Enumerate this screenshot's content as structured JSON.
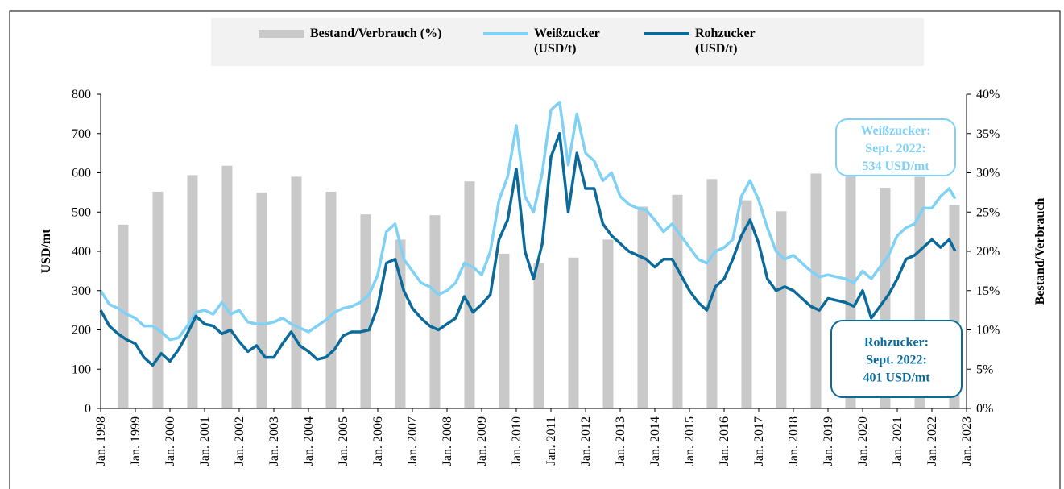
{
  "chart_data": {
    "type": "bar_line",
    "ylabel": "USD/mt",
    "y2label": "Bestand/Verbrauch",
    "xlim": [
      1998,
      2023
    ],
    "xticks": [
      {
        "value": 1998,
        "label": "Jan. 1998"
      },
      {
        "value": 1999,
        "label": "Jan. 1999"
      },
      {
        "value": 2000,
        "label": "Jan. 2000"
      },
      {
        "value": 2001,
        "label": "Jan. 2001"
      },
      {
        "value": 2002,
        "label": "Jan. 2002"
      },
      {
        "value": 2003,
        "label": "Jan. 2003"
      },
      {
        "value": 2004,
        "label": "Jan. 2004"
      },
      {
        "value": 2005,
        "label": "Jan. 2005"
      },
      {
        "value": 2006,
        "label": "Jan. 2006"
      },
      {
        "value": 2007,
        "label": "Jan. 2007"
      },
      {
        "value": 2008,
        "label": "Jan. 2008"
      },
      {
        "value": 2009,
        "label": "Jan. 2009"
      },
      {
        "value": 2010,
        "label": "Jan. 2010"
      },
      {
        "value": 2011,
        "label": "Jan. 2011"
      },
      {
        "value": 2012,
        "label": "Jan. 2012"
      },
      {
        "value": 2013,
        "label": "Jan. 2013"
      },
      {
        "value": 2014,
        "label": "Jan. 2014"
      },
      {
        "value": 2015,
        "label": "Jan. 2015"
      },
      {
        "value": 2016,
        "label": "Jan. 2016"
      },
      {
        "value": 2017,
        "label": "Jan. 2017"
      },
      {
        "value": 2018,
        "label": "Jan. 2018"
      },
      {
        "value": 2019,
        "label": "Jan. 2019"
      },
      {
        "value": 2020,
        "label": "Jan. 2020"
      },
      {
        "value": 2021,
        "label": "Jan. 2021"
      },
      {
        "value": 2022,
        "label": "Jan. 2022"
      },
      {
        "value": 2023,
        "label": "Jan. 2023"
      }
    ],
    "ylim": [
      0,
      800
    ],
    "yticks": [
      0,
      100,
      200,
      300,
      400,
      500,
      600,
      700,
      800
    ],
    "y2lim": [
      0,
      40
    ],
    "y2ticks": [
      {
        "value": 0,
        "label": "0%"
      },
      {
        "value": 5,
        "label": "5%"
      },
      {
        "value": 10,
        "label": "10%"
      },
      {
        "value": 15,
        "label": "15%"
      },
      {
        "value": 20,
        "label": "20%"
      },
      {
        "value": 25,
        "label": "25%"
      },
      {
        "value": 30,
        "label": "30%"
      },
      {
        "value": 35,
        "label": "35%"
      },
      {
        "value": 40,
        "label": "40%"
      }
    ],
    "bars": {
      "name": "Bestand/Verbrauch (%)",
      "color": "#c9c9c9",
      "axis": "y2",
      "x": [
        1998.65,
        1999.65,
        2000.65,
        2001.65,
        2002.65,
        2003.65,
        2004.65,
        2005.65,
        2006.65,
        2007.65,
        2008.65,
        2009.65,
        2010.65,
        2011.65,
        2012.65,
        2013.65,
        2014.65,
        2015.65,
        2016.65,
        2017.65,
        2018.65,
        2019.65,
        2020.65,
        2021.65,
        2022.65
      ],
      "values": [
        23.4,
        27.6,
        29.7,
        30.9,
        27.5,
        29.5,
        27.6,
        24.7,
        21.5,
        24.6,
        28.9,
        19.7,
        18.5,
        19.2,
        21.5,
        25.7,
        27.2,
        29.2,
        26.5,
        25.1,
        29.9,
        29.9,
        28.1,
        29.5,
        25.9
      ]
    },
    "x": [
      1998,
      1998.25,
      1998.5,
      1998.75,
      1999,
      1999.25,
      1999.5,
      1999.75,
      2000,
      2000.25,
      2000.5,
      2000.75,
      2001,
      2001.25,
      2001.5,
      2001.75,
      2002,
      2002.25,
      2002.5,
      2002.75,
      2003,
      2003.25,
      2003.5,
      2003.75,
      2004,
      2004.25,
      2004.5,
      2004.75,
      2005,
      2005.25,
      2005.5,
      2005.75,
      2006,
      2006.25,
      2006.5,
      2006.75,
      2007,
      2007.25,
      2007.5,
      2007.75,
      2008,
      2008.25,
      2008.5,
      2008.75,
      2009,
      2009.25,
      2009.5,
      2009.75,
      2010,
      2010.25,
      2010.5,
      2010.75,
      2011,
      2011.25,
      2011.5,
      2011.75,
      2012,
      2012.25,
      2012.5,
      2012.75,
      2013,
      2013.25,
      2013.5,
      2013.75,
      2014,
      2014.25,
      2014.5,
      2014.75,
      2015,
      2015.25,
      2015.5,
      2015.75,
      2016,
      2016.25,
      2016.5,
      2016.75,
      2017,
      2017.25,
      2017.5,
      2017.75,
      2018,
      2018.25,
      2018.5,
      2018.75,
      2019,
      2019.25,
      2019.5,
      2019.75,
      2020,
      2020.25,
      2020.5,
      2020.75,
      2021,
      2021.25,
      2021.5,
      2021.75,
      2022,
      2022.25,
      2022.5,
      2022.67
    ],
    "series": [
      {
        "name": "Weißzucker (USD/t)",
        "color": "#7fd1f5",
        "values": [
          300,
          265,
          255,
          240,
          230,
          210,
          210,
          195,
          175,
          180,
          210,
          245,
          250,
          240,
          270,
          240,
          250,
          220,
          215,
          215,
          220,
          230,
          215,
          205,
          195,
          210,
          225,
          245,
          255,
          260,
          270,
          290,
          340,
          450,
          470,
          380,
          350,
          320,
          310,
          290,
          300,
          320,
          370,
          360,
          340,
          400,
          530,
          590,
          720,
          540,
          500,
          600,
          760,
          780,
          620,
          750,
          650,
          630,
          580,
          600,
          540,
          520,
          510,
          505,
          480,
          450,
          470,
          440,
          410,
          380,
          370,
          400,
          410,
          430,
          540,
          580,
          530,
          460,
          400,
          380,
          390,
          370,
          350,
          335,
          340,
          335,
          330,
          320,
          350,
          330,
          360,
          390,
          440,
          460,
          470,
          510,
          510,
          540,
          560,
          534
        ]
      },
      {
        "name": "Rohzucker (USD/t)",
        "color": "#0b6a99",
        "values": [
          250,
          210,
          190,
          175,
          165,
          130,
          110,
          140,
          120,
          150,
          190,
          235,
          215,
          210,
          190,
          200,
          170,
          145,
          160,
          130,
          130,
          165,
          195,
          160,
          145,
          125,
          130,
          150,
          185,
          195,
          195,
          200,
          260,
          370,
          380,
          300,
          255,
          230,
          210,
          200,
          215,
          230,
          285,
          245,
          265,
          290,
          430,
          480,
          610,
          400,
          330,
          420,
          640,
          700,
          500,
          650,
          560,
          560,
          470,
          440,
          420,
          400,
          390,
          380,
          360,
          380,
          380,
          340,
          300,
          270,
          250,
          310,
          330,
          380,
          440,
          480,
          420,
          330,
          300,
          310,
          300,
          280,
          260,
          250,
          280,
          275,
          270,
          260,
          300,
          230,
          260,
          290,
          330,
          380,
          390,
          410,
          430,
          410,
          430,
          401
        ]
      }
    ],
    "annotations": [
      {
        "lines": [
          "Weißzucker:",
          "Sept. 2022:",
          "534 USD/mt"
        ],
        "color": "#7fd1f5"
      },
      {
        "lines": [
          "Rohzucker:",
          "Sept. 2022:",
          "401 USD/mt"
        ],
        "color": "#0b6a99"
      }
    ]
  }
}
